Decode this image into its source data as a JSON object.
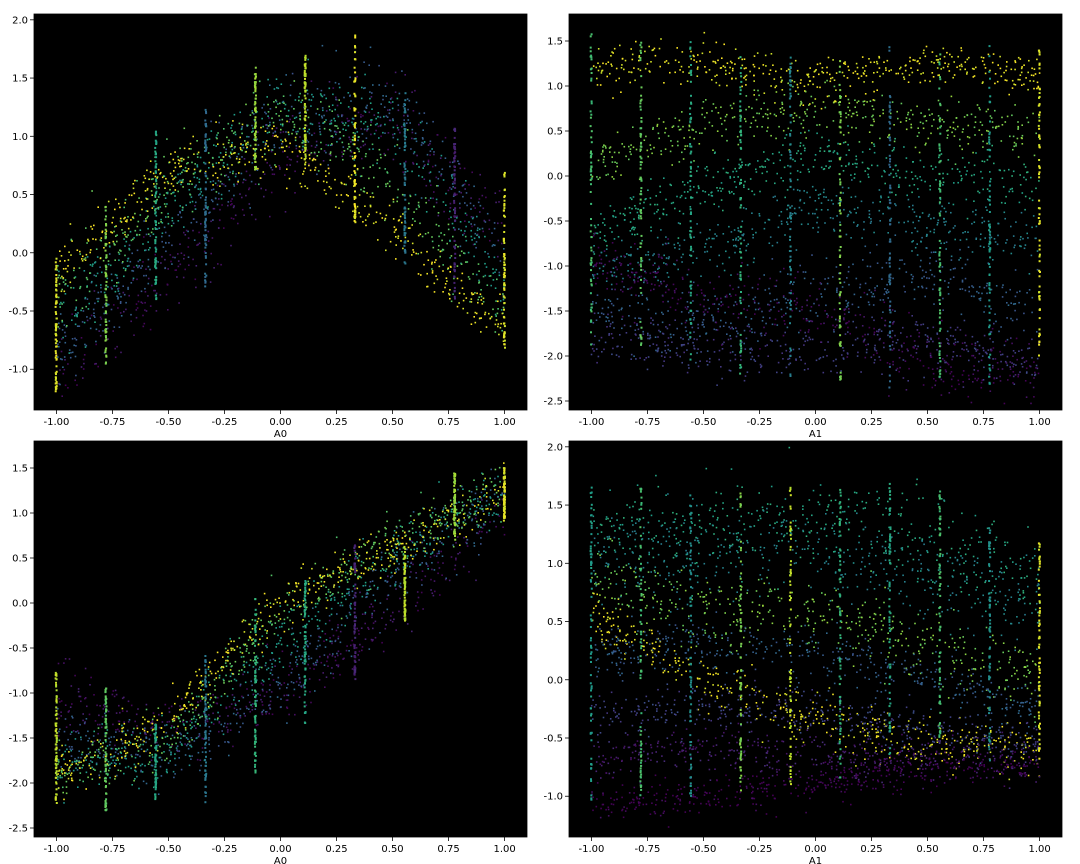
{
  "figure": {
    "background": "#ffffff",
    "axes_background": "#000000",
    "colormap": "viridis"
  },
  "chart_data": [
    {
      "type": "scatter",
      "xlabel": "A0",
      "ylabel": "",
      "xlim": [
        -1.1,
        1.1
      ],
      "ylim": [
        -1.35,
        2.05
      ],
      "xticks": [
        "-1.00",
        "-0.75",
        "-0.50",
        "-0.25",
        "0.00",
        "0.25",
        "0.50",
        "0.75",
        "1.00"
      ],
      "yticks": [
        "-1.0",
        "-0.5",
        "0.0",
        "0.5",
        "1.0",
        "1.5",
        "2.0"
      ],
      "point_clouds": [
        {
          "color_level": 0.05,
          "y_at_x": [
            [
              -1.0,
              -1.05
            ],
            [
              -0.5,
              -0.2
            ],
            [
              0.0,
              0.9
            ],
            [
              0.5,
              1.15
            ],
            [
              1.0,
              0.2
            ]
          ],
          "spread": 0.18
        },
        {
          "color_level": 0.3,
          "y_at_x": [
            [
              -1.0,
              -0.85
            ],
            [
              -0.5,
              0.1
            ],
            [
              0.0,
              1.15
            ],
            [
              0.5,
              1.3
            ],
            [
              1.0,
              0.0
            ]
          ],
          "spread": 0.18
        },
        {
          "color_level": 0.55,
          "y_at_x": [
            [
              -1.0,
              -0.6
            ],
            [
              -0.5,
              0.35
            ],
            [
              0.0,
              1.3
            ],
            [
              0.5,
              1.1
            ],
            [
              1.0,
              -0.3
            ]
          ],
          "spread": 0.18
        },
        {
          "color_level": 0.75,
          "y_at_x": [
            [
              -1.0,
              -0.4
            ],
            [
              -0.5,
              0.55
            ],
            [
              0.0,
              1.2
            ],
            [
              0.5,
              0.6
            ],
            [
              1.0,
              -0.55
            ]
          ],
          "spread": 0.16
        },
        {
          "color_level": 0.98,
          "y_at_x": [
            [
              -1.0,
              -0.2
            ],
            [
              -0.5,
              0.7
            ],
            [
              0.0,
              0.95
            ],
            [
              0.5,
              0.2
            ],
            [
              1.0,
              -0.7
            ]
          ],
          "spread": 0.12
        }
      ],
      "vertical_strips": [
        {
          "x": -1.0,
          "y_range": [
            -1.2,
            -0.05
          ],
          "color_level": 0.95
        },
        {
          "x": -0.778,
          "y_range": [
            -1.0,
            0.4
          ],
          "color_level": 0.8
        },
        {
          "x": -0.556,
          "y_range": [
            -0.4,
            1.05
          ],
          "color_level": 0.6
        },
        {
          "x": -0.333,
          "y_range": [
            -0.3,
            1.25
          ],
          "color_level": 0.35
        },
        {
          "x": -0.111,
          "y_range": [
            0.7,
            1.6
          ],
          "color_level": 0.85
        },
        {
          "x": 0.111,
          "y_range": [
            0.75,
            1.7
          ],
          "color_level": 0.9
        },
        {
          "x": 0.333,
          "y_range": [
            0.25,
            1.9
          ],
          "color_level": 0.97
        },
        {
          "x": 0.556,
          "y_range": [
            -0.1,
            1.45
          ],
          "color_level": 0.4
        },
        {
          "x": 0.778,
          "y_range": [
            -0.5,
            1.1
          ],
          "color_level": 0.1
        },
        {
          "x": 1.0,
          "y_range": [
            -0.85,
            0.7
          ],
          "color_level": 0.95
        }
      ]
    },
    {
      "type": "scatter",
      "xlabel": "A1",
      "ylabel": "",
      "xlim": [
        -1.1,
        1.1
      ],
      "ylim": [
        -2.6,
        1.8
      ],
      "xticks": [
        "-1.00",
        "-0.75",
        "-0.50",
        "-0.25",
        "0.00",
        "0.25",
        "0.50",
        "0.75",
        "1.00"
      ],
      "yticks": [
        "-2.5",
        "-2.0",
        "-1.5",
        "-1.0",
        "-0.5",
        "0.0",
        "0.5",
        "1.0",
        "1.5"
      ],
      "point_clouds": [
        {
          "color_level": 0.97,
          "y_at_x": [
            [
              -1.0,
              1.2
            ],
            [
              -0.5,
              1.25
            ],
            [
              0.0,
              1.05
            ],
            [
              0.5,
              1.25
            ],
            [
              1.0,
              1.1
            ]
          ],
          "spread": 0.12
        },
        {
          "color_level": 0.8,
          "y_at_x": [
            [
              -1.0,
              0.1
            ],
            [
              -0.5,
              0.6
            ],
            [
              0.0,
              0.75
            ],
            [
              0.5,
              0.6
            ],
            [
              1.0,
              0.45
            ]
          ],
          "spread": 0.14
        },
        {
          "color_level": 0.6,
          "y_at_x": [
            [
              -1.0,
              -0.6
            ],
            [
              -0.5,
              -0.15
            ],
            [
              0.0,
              0.25
            ],
            [
              0.5,
              0.0
            ],
            [
              1.0,
              -0.1
            ]
          ],
          "spread": 0.15
        },
        {
          "color_level": 0.45,
          "y_at_x": [
            [
              -1.0,
              -1.0
            ],
            [
              -0.5,
              -0.85
            ],
            [
              0.0,
              -0.3
            ],
            [
              0.5,
              -0.55
            ],
            [
              1.0,
              -0.7
            ]
          ],
          "spread": 0.16
        },
        {
          "color_level": 0.3,
          "y_at_x": [
            [
              -1.0,
              -1.5
            ],
            [
              -0.5,
              -1.6
            ],
            [
              0.0,
              -1.3
            ],
            [
              0.5,
              -1.1
            ],
            [
              1.0,
              -1.5
            ]
          ],
          "spread": 0.18
        },
        {
          "color_level": 0.18,
          "y_at_x": [
            [
              -1.0,
              -1.8
            ],
            [
              -0.5,
              -1.9
            ],
            [
              0.0,
              -1.95
            ],
            [
              0.5,
              -1.8
            ],
            [
              1.0,
              -2.05
            ]
          ],
          "spread": 0.16
        },
        {
          "color_level": 0.03,
          "y_at_x": [
            [
              -1.0,
              -0.95
            ],
            [
              -0.5,
              -1.3
            ],
            [
              0.0,
              -1.5
            ],
            [
              0.5,
              -2.1
            ],
            [
              1.0,
              -2.2
            ]
          ],
          "spread": 0.18
        }
      ],
      "vertical_strips": [
        {
          "x": -1.0,
          "y_range": [
            -1.9,
            1.6
          ],
          "color_level": 0.7
        },
        {
          "x": -0.778,
          "y_range": [
            -1.9,
            1.55
          ],
          "color_level": 0.75
        },
        {
          "x": -0.556,
          "y_range": [
            -2.15,
            1.5
          ],
          "color_level": 0.6
        },
        {
          "x": -0.333,
          "y_range": [
            -2.2,
            1.45
          ],
          "color_level": 0.65
        },
        {
          "x": -0.111,
          "y_range": [
            -2.25,
            1.35
          ],
          "color_level": 0.45
        },
        {
          "x": 0.111,
          "y_range": [
            -2.3,
            1.3
          ],
          "color_level": 0.8
        },
        {
          "x": 0.333,
          "y_range": [
            -2.35,
            1.45
          ],
          "color_level": 0.35
        },
        {
          "x": 0.556,
          "y_range": [
            -2.4,
            1.4
          ],
          "color_level": 0.7
        },
        {
          "x": 0.778,
          "y_range": [
            -2.35,
            1.5
          ],
          "color_level": 0.55
        },
        {
          "x": 1.0,
          "y_range": [
            -2.0,
            1.4
          ],
          "color_level": 0.95
        }
      ]
    },
    {
      "type": "scatter",
      "xlabel": "A0",
      "ylabel": "",
      "xlim": [
        -1.1,
        1.1
      ],
      "ylim": [
        -2.6,
        1.8
      ],
      "xticks": [
        "-1.00",
        "-0.75",
        "-0.50",
        "-0.25",
        "0.00",
        "0.25",
        "0.50",
        "0.75",
        "1.00"
      ],
      "yticks": [
        "-2.5",
        "-2.0",
        "-1.5",
        "-1.0",
        "-0.5",
        "0.0",
        "0.5",
        "1.0",
        "1.5"
      ],
      "point_clouds": [
        {
          "color_level": 0.05,
          "y_at_x": [
            [
              -1.0,
              -1.05
            ],
            [
              -0.5,
              -1.4
            ],
            [
              0.0,
              -1.05
            ],
            [
              0.5,
              -0.05
            ],
            [
              1.0,
              1.05
            ]
          ],
          "spread": 0.18
        },
        {
          "color_level": 0.3,
          "y_at_x": [
            [
              -1.0,
              -1.45
            ],
            [
              -0.5,
              -1.75
            ],
            [
              0.0,
              -0.9
            ],
            [
              0.5,
              0.35
            ],
            [
              1.0,
              1.2
            ]
          ],
          "spread": 0.2
        },
        {
          "color_level": 0.55,
          "y_at_x": [
            [
              -1.0,
              -1.75
            ],
            [
              -0.5,
              -1.7
            ],
            [
              0.0,
              -0.45
            ],
            [
              0.5,
              0.55
            ],
            [
              1.0,
              1.25
            ]
          ],
          "spread": 0.18
        },
        {
          "color_level": 0.75,
          "y_at_x": [
            [
              -1.0,
              -1.9
            ],
            [
              -0.5,
              -1.55
            ],
            [
              0.0,
              -0.1
            ],
            [
              0.5,
              0.65
            ],
            [
              1.0,
              1.3
            ]
          ],
          "spread": 0.16
        },
        {
          "color_level": 0.98,
          "y_at_x": [
            [
              -1.0,
              -1.95
            ],
            [
              -0.5,
              -1.3
            ],
            [
              0.0,
              0.0
            ],
            [
              0.5,
              0.6
            ],
            [
              1.0,
              1.2
            ]
          ],
          "spread": 0.14
        }
      ],
      "vertical_strips": [
        {
          "x": -1.0,
          "y_range": [
            -2.35,
            -0.75
          ],
          "color_level": 0.9
        },
        {
          "x": -0.778,
          "y_range": [
            -2.35,
            -0.95
          ],
          "color_level": 0.75
        },
        {
          "x": -0.556,
          "y_range": [
            -2.2,
            -1.35
          ],
          "color_level": 0.6
        },
        {
          "x": -0.333,
          "y_range": [
            -2.25,
            -0.55
          ],
          "color_level": 0.4
        },
        {
          "x": -0.111,
          "y_range": [
            -1.9,
            0.05
          ],
          "color_level": 0.65
        },
        {
          "x": 0.111,
          "y_range": [
            -1.35,
            0.25
          ],
          "color_level": 0.6
        },
        {
          "x": 0.333,
          "y_range": [
            -0.85,
            0.65
          ],
          "color_level": 0.1
        },
        {
          "x": 0.556,
          "y_range": [
            -0.2,
            0.65
          ],
          "color_level": 0.9
        },
        {
          "x": 0.778,
          "y_range": [
            0.7,
            1.45
          ],
          "color_level": 0.85
        },
        {
          "x": 1.0,
          "y_range": [
            0.9,
            1.5
          ],
          "color_level": 0.95
        }
      ]
    },
    {
      "type": "scatter",
      "xlabel": "A1",
      "ylabel": "",
      "xlim": [
        -1.1,
        1.1
      ],
      "ylim": [
        -1.35,
        2.05
      ],
      "xticks": [
        "-1.00",
        "-0.75",
        "-0.50",
        "-0.25",
        "0.00",
        "0.25",
        "0.50",
        "0.75",
        "1.00"
      ],
      "yticks": [
        "-1.0",
        "-0.5",
        "0.0",
        "0.5",
        "1.0",
        "1.5",
        "2.0"
      ],
      "point_clouds": [
        {
          "color_level": 0.6,
          "y_at_x": [
            [
              -1.0,
              1.3
            ],
            [
              -0.5,
              1.3
            ],
            [
              0.0,
              1.35
            ],
            [
              0.5,
              1.2
            ],
            [
              1.0,
              0.85
            ]
          ],
          "spread": 0.2
        },
        {
          "color_level": 0.45,
          "y_at_x": [
            [
              -1.0,
              1.0
            ],
            [
              -0.5,
              1.05
            ],
            [
              0.0,
              1.1
            ],
            [
              0.5,
              0.9
            ],
            [
              1.0,
              0.6
            ]
          ],
          "spread": 0.2
        },
        {
          "color_level": 0.8,
          "y_at_x": [
            [
              -1.0,
              0.85
            ],
            [
              -0.5,
              0.6
            ],
            [
              0.0,
              0.55
            ],
            [
              0.5,
              0.3
            ],
            [
              1.0,
              -0.05
            ]
          ],
          "spread": 0.15
        },
        {
          "color_level": 0.98,
          "y_at_x": [
            [
              -1.0,
              0.55
            ],
            [
              -0.5,
              0.0
            ],
            [
              0.0,
              -0.35
            ],
            [
              0.5,
              -0.55
            ],
            [
              1.0,
              -0.6
            ]
          ],
          "spread": 0.12
        },
        {
          "color_level": 0.3,
          "y_at_x": [
            [
              -1.0,
              0.2
            ],
            [
              -0.5,
              0.3
            ],
            [
              0.0,
              0.2
            ],
            [
              0.5,
              0.05
            ],
            [
              1.0,
              -0.25
            ]
          ],
          "spread": 0.12
        },
        {
          "color_level": 0.2,
          "y_at_x": [
            [
              -1.0,
              -0.3
            ],
            [
              -0.5,
              -0.25
            ],
            [
              0.0,
              -0.3
            ],
            [
              0.5,
              -0.45
            ],
            [
              1.0,
              -0.55
            ]
          ],
          "spread": 0.1
        },
        {
          "color_level": 0.08,
          "y_at_x": [
            [
              -1.0,
              -0.7
            ],
            [
              -0.5,
              -0.6
            ],
            [
              0.0,
              -0.65
            ],
            [
              0.5,
              -0.7
            ],
            [
              1.0,
              -0.7
            ]
          ],
          "spread": 0.1
        },
        {
          "color_level": 0.0,
          "y_at_x": [
            [
              -1.0,
              -1.05
            ],
            [
              -0.5,
              -1.0
            ],
            [
              0.0,
              -0.9
            ],
            [
              0.5,
              -0.75
            ],
            [
              1.0,
              -0.75
            ]
          ],
          "spread": 0.08
        }
      ],
      "vertical_strips": [
        {
          "x": -1.0,
          "y_range": [
            -1.1,
            1.65
          ],
          "color_level": 0.55
        },
        {
          "x": -0.778,
          "y_range": [
            -1.05,
            1.65
          ],
          "color_level": 0.7
        },
        {
          "x": -0.556,
          "y_range": [
            -1.0,
            1.6
          ],
          "color_level": 0.5
        },
        {
          "x": -0.333,
          "y_range": [
            -0.95,
            1.6
          ],
          "color_level": 0.8
        },
        {
          "x": -0.111,
          "y_range": [
            -0.9,
            1.65
          ],
          "color_level": 0.9
        },
        {
          "x": 0.111,
          "y_range": [
            -0.85,
            1.65
          ],
          "color_level": 0.65
        },
        {
          "x": 0.333,
          "y_range": [
            -0.65,
            1.7
          ],
          "color_level": 0.6
        },
        {
          "x": 0.556,
          "y_range": [
            -0.6,
            1.65
          ],
          "color_level": 0.7
        },
        {
          "x": 0.778,
          "y_range": [
            -0.7,
            1.35
          ],
          "color_level": 0.5
        },
        {
          "x": 1.0,
          "y_range": [
            -0.75,
            1.2
          ],
          "color_level": 0.95
        }
      ]
    }
  ]
}
